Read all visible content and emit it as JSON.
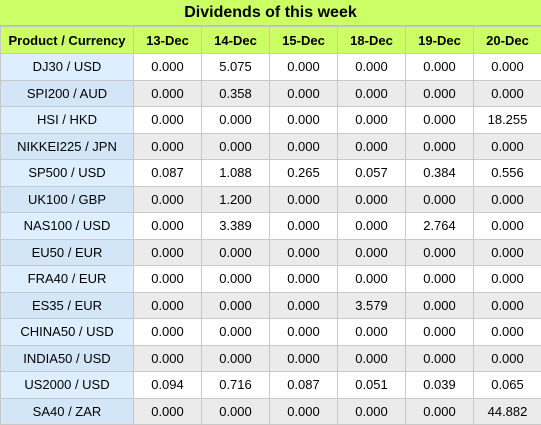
{
  "title": "Dividends of this week",
  "headers": [
    "Product / Currency",
    "13-Dec",
    "14-Dec",
    "15-Dec",
    "18-Dec",
    "19-Dec",
    "20-Dec"
  ],
  "rows": [
    {
      "product": "DJ30 / USD",
      "values": [
        "0.000",
        "5.075",
        "0.000",
        "0.000",
        "0.000",
        "0.000"
      ]
    },
    {
      "product": "SPI200 / AUD",
      "values": [
        "0.000",
        "0.358",
        "0.000",
        "0.000",
        "0.000",
        "0.000"
      ]
    },
    {
      "product": "HSI / HKD",
      "values": [
        "0.000",
        "0.000",
        "0.000",
        "0.000",
        "0.000",
        "18.255"
      ]
    },
    {
      "product": "NIKKEI225 / JPN",
      "values": [
        "0.000",
        "0.000",
        "0.000",
        "0.000",
        "0.000",
        "0.000"
      ]
    },
    {
      "product": "SP500 / USD",
      "values": [
        "0.087",
        "1.088",
        "0.265",
        "0.057",
        "0.384",
        "0.556"
      ]
    },
    {
      "product": "UK100 / GBP",
      "values": [
        "0.000",
        "1.200",
        "0.000",
        "0.000",
        "0.000",
        "0.000"
      ]
    },
    {
      "product": "NAS100 / USD",
      "values": [
        "0.000",
        "3.389",
        "0.000",
        "0.000",
        "2.764",
        "0.000"
      ]
    },
    {
      "product": "EU50 / EUR",
      "values": [
        "0.000",
        "0.000",
        "0.000",
        "0.000",
        "0.000",
        "0.000"
      ]
    },
    {
      "product": "FRA40 / EUR",
      "values": [
        "0.000",
        "0.000",
        "0.000",
        "0.000",
        "0.000",
        "0.000"
      ]
    },
    {
      "product": "ES35 / EUR",
      "values": [
        "0.000",
        "0.000",
        "0.000",
        "3.579",
        "0.000",
        "0.000"
      ]
    },
    {
      "product": "CHINA50 / USD",
      "values": [
        "0.000",
        "0.000",
        "0.000",
        "0.000",
        "0.000",
        "0.000"
      ]
    },
    {
      "product": "INDIA50 / USD",
      "values": [
        "0.000",
        "0.000",
        "0.000",
        "0.000",
        "0.000",
        "0.000"
      ]
    },
    {
      "product": "US2000 / USD",
      "values": [
        "0.094",
        "0.716",
        "0.087",
        "0.051",
        "0.039",
        "0.065"
      ]
    },
    {
      "product": "SA40 / ZAR",
      "values": [
        "0.000",
        "0.000",
        "0.000",
        "0.000",
        "0.000",
        "44.882"
      ]
    }
  ],
  "colors": {
    "header_bg": "#ccff66",
    "product_bg": "#ddeeff",
    "row_alt_bg": "#ebebeb"
  }
}
